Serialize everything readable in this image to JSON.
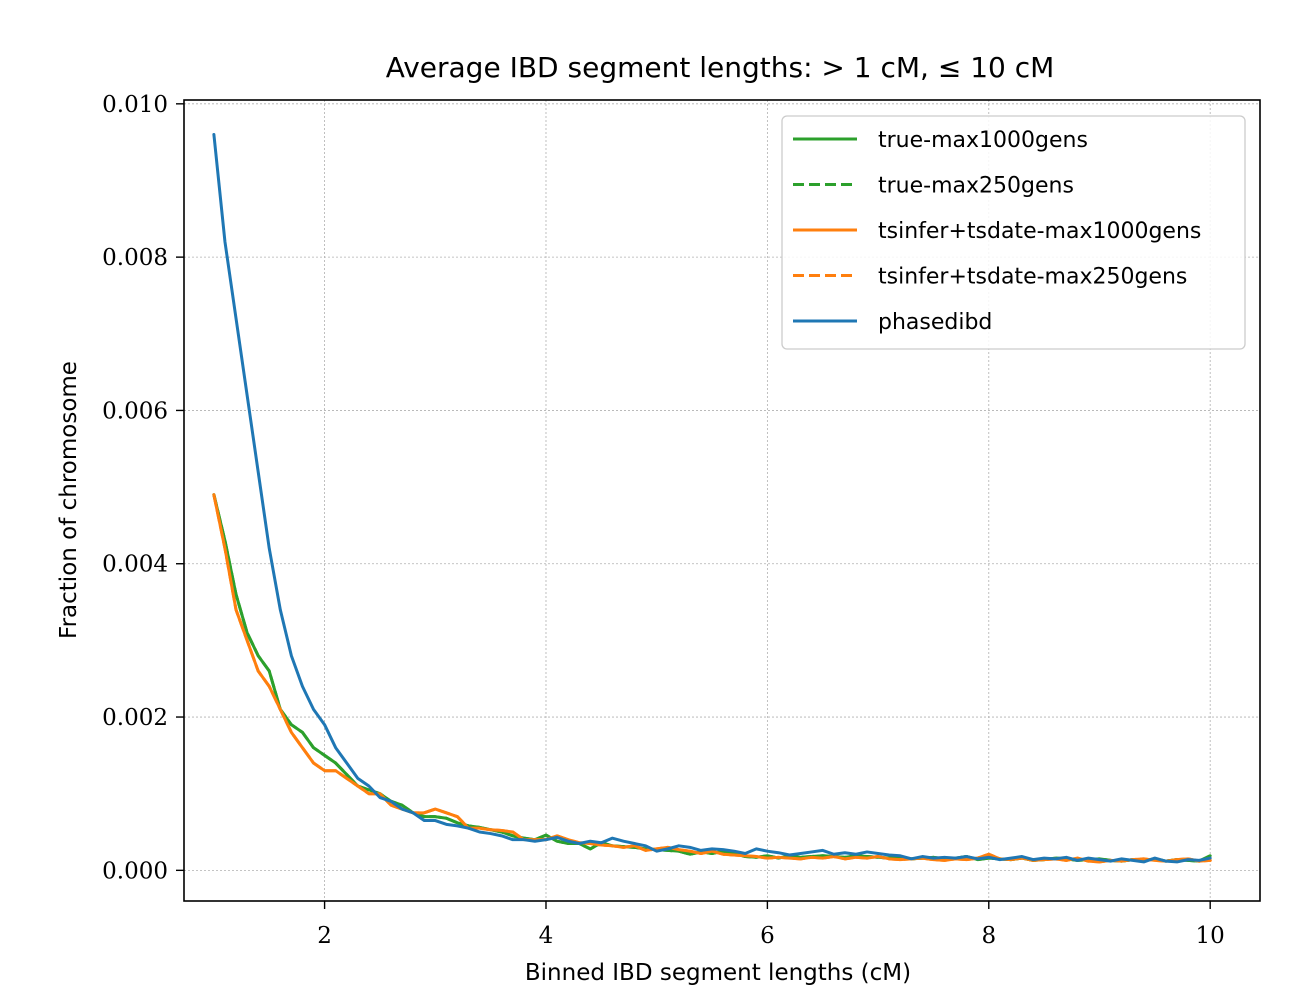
{
  "chart_data": {
    "type": "line",
    "title": "Average IBD segment lengths: > 1 cM, ≤ 10 cM",
    "xlabel": "Binned IBD segment lengths (cM)",
    "ylabel": "Fraction of chromosome",
    "xlim": [
      0.73,
      10.45
    ],
    "ylim": [
      -0.0004,
      0.01005
    ],
    "xticks": [
      2,
      4,
      6,
      8,
      10
    ],
    "xtick_labels": [
      "2",
      "4",
      "6",
      "8",
      "10"
    ],
    "yticks": [
      0.0,
      0.002,
      0.004,
      0.006,
      0.008,
      0.01
    ],
    "ytick_labels": [
      "0.000",
      "0.002",
      "0.004",
      "0.006",
      "0.008",
      "0.010"
    ],
    "grid": true,
    "legend_position": "top-right",
    "x": [
      1.0,
      1.1,
      1.2,
      1.3,
      1.4,
      1.5,
      1.6,
      1.7,
      1.8,
      1.9,
      2.0,
      2.1,
      2.2,
      2.3,
      2.4,
      2.5,
      2.6,
      2.7,
      2.8,
      2.9,
      3.0,
      3.1,
      3.2,
      3.3,
      3.4,
      3.5,
      3.6,
      3.7,
      3.8,
      3.9,
      4.0,
      4.1,
      4.2,
      4.3,
      4.4,
      4.5,
      4.6,
      4.7,
      4.8,
      4.9,
      5.0,
      5.1,
      5.2,
      5.3,
      5.4,
      5.5,
      5.6,
      5.7,
      5.8,
      5.9,
      6.0,
      6.1,
      6.2,
      6.3,
      6.4,
      6.5,
      6.6,
      6.7,
      6.8,
      6.9,
      7.0,
      7.1,
      7.2,
      7.3,
      7.4,
      7.5,
      7.6,
      7.7,
      7.8,
      7.9,
      8.0,
      8.1,
      8.2,
      8.3,
      8.4,
      8.5,
      8.6,
      8.7,
      8.8,
      8.9,
      9.0,
      9.1,
      9.2,
      9.3,
      9.4,
      9.5,
      9.6,
      9.7,
      9.8,
      9.9,
      10.0
    ],
    "series": [
      {
        "name": "true-max1000gens",
        "color": "#2ca02c",
        "dash": "solid",
        "values": [
          0.0049,
          0.0043,
          0.0036,
          0.0031,
          0.0028,
          0.0026,
          0.0021,
          0.0019,
          0.0018,
          0.0016,
          0.0015,
          0.0014,
          0.00125,
          0.0011,
          0.00105,
          0.001,
          0.0009,
          0.00085,
          0.00075,
          0.0007,
          0.0007,
          0.00068,
          0.00062,
          0.00058,
          0.00056,
          0.00053,
          0.0005,
          0.00045,
          0.00042,
          0.0004,
          0.00046,
          0.00038,
          0.00035,
          0.00035,
          0.00028,
          0.00036,
          0.00032,
          0.00031,
          0.0003,
          0.00028,
          0.00027,
          0.00026,
          0.00025,
          0.00021,
          0.00024,
          0.00022,
          0.00025,
          0.00022,
          0.00018,
          0.00017,
          0.00019,
          0.00016,
          0.00019,
          0.00017,
          0.00018,
          0.00019,
          0.00018,
          0.00017,
          0.00019,
          0.00018,
          0.00017,
          0.00016,
          0.00018,
          0.00015,
          0.00016,
          0.00017,
          0.00015,
          0.00016,
          0.00018,
          0.00014,
          0.00016,
          0.00015,
          0.00014,
          0.00016,
          0.00013,
          0.00014,
          0.00016,
          0.00015,
          0.00013,
          0.00014,
          0.00015,
          0.00013,
          0.00012,
          0.00014,
          0.00013,
          0.00015,
          0.00012,
          0.00014,
          0.00013,
          0.00012,
          0.00019
        ]
      },
      {
        "name": "true-max250gens",
        "color": "#2ca02c",
        "dash": "dashed",
        "values": [
          0.0049,
          0.0043,
          0.0036,
          0.0031,
          0.0028,
          0.0026,
          0.0021,
          0.0019,
          0.0018,
          0.0016,
          0.0015,
          0.0014,
          0.00125,
          0.0011,
          0.00105,
          0.001,
          0.0009,
          0.00085,
          0.00075,
          0.0007,
          0.0007,
          0.00068,
          0.00062,
          0.00058,
          0.00056,
          0.00053,
          0.0005,
          0.00045,
          0.00042,
          0.0004,
          0.00046,
          0.00038,
          0.00035,
          0.00035,
          0.00028,
          0.00036,
          0.00032,
          0.00031,
          0.0003,
          0.00028,
          0.00027,
          0.00026,
          0.00025,
          0.00021,
          0.00024,
          0.00022,
          0.00025,
          0.00022,
          0.00018,
          0.00017,
          0.00019,
          0.00016,
          0.00019,
          0.00017,
          0.00018,
          0.00019,
          0.00018,
          0.00017,
          0.00019,
          0.00018,
          0.00017,
          0.00016,
          0.00018,
          0.00015,
          0.00016,
          0.00017,
          0.00015,
          0.00016,
          0.00018,
          0.00014,
          0.00016,
          0.00015,
          0.00014,
          0.00016,
          0.00013,
          0.00014,
          0.00016,
          0.00015,
          0.00013,
          0.00014,
          0.00015,
          0.00013,
          0.00012,
          0.00014,
          0.00013,
          0.00015,
          0.00012,
          0.00014,
          0.00013,
          0.00012,
          0.00019
        ]
      },
      {
        "name": "tsinfer+tsdate-max1000gens",
        "color": "#ff7f0e",
        "dash": "solid",
        "values": [
          0.0049,
          0.0042,
          0.0034,
          0.003,
          0.0026,
          0.0024,
          0.0021,
          0.0018,
          0.0016,
          0.0014,
          0.0013,
          0.0013,
          0.0012,
          0.0011,
          0.001,
          0.001,
          0.00085,
          0.0008,
          0.00075,
          0.00075,
          0.0008,
          0.00075,
          0.0007,
          0.00055,
          0.00055,
          0.00053,
          0.00052,
          0.0005,
          0.0004,
          0.0004,
          0.0004,
          0.00045,
          0.0004,
          0.00036,
          0.00035,
          0.00033,
          0.00032,
          0.0003,
          0.00032,
          0.00026,
          0.00028,
          0.0003,
          0.00027,
          0.00025,
          0.00022,
          0.00025,
          0.00021,
          0.0002,
          0.00019,
          0.00018,
          0.00016,
          0.00017,
          0.00016,
          0.00015,
          0.00017,
          0.00016,
          0.00018,
          0.00015,
          0.00017,
          0.00016,
          0.00018,
          0.00015,
          0.00014,
          0.00015,
          0.00016,
          0.00014,
          0.00013,
          0.00015,
          0.00014,
          0.00016,
          0.00021,
          0.00015,
          0.00014,
          0.00016,
          0.00013,
          0.00014,
          0.00015,
          0.00013,
          0.00016,
          0.00012,
          0.00011,
          0.00013,
          0.00012,
          0.00014,
          0.00015,
          0.00013,
          0.00012,
          0.00014,
          0.00015,
          0.00012,
          0.00013
        ]
      },
      {
        "name": "tsinfer+tsdate-max250gens",
        "color": "#ff7f0e",
        "dash": "dashed",
        "values": [
          0.0049,
          0.0042,
          0.0034,
          0.003,
          0.0026,
          0.0024,
          0.0021,
          0.0018,
          0.0016,
          0.0014,
          0.0013,
          0.0013,
          0.0012,
          0.0011,
          0.001,
          0.001,
          0.00085,
          0.0008,
          0.00075,
          0.00075,
          0.0008,
          0.00075,
          0.0007,
          0.00055,
          0.00055,
          0.00053,
          0.00052,
          0.0005,
          0.0004,
          0.0004,
          0.0004,
          0.00045,
          0.0004,
          0.00036,
          0.00035,
          0.00033,
          0.00032,
          0.0003,
          0.00032,
          0.00026,
          0.00028,
          0.0003,
          0.00027,
          0.00025,
          0.00022,
          0.00025,
          0.00021,
          0.0002,
          0.00019,
          0.00018,
          0.00016,
          0.00017,
          0.00016,
          0.00015,
          0.00017,
          0.00016,
          0.00018,
          0.00015,
          0.00017,
          0.00016,
          0.00018,
          0.00015,
          0.00014,
          0.00015,
          0.00016,
          0.00014,
          0.00013,
          0.00015,
          0.00014,
          0.00016,
          0.00021,
          0.00015,
          0.00014,
          0.00016,
          0.00013,
          0.00014,
          0.00015,
          0.00013,
          0.00016,
          0.00012,
          0.00011,
          0.00013,
          0.00012,
          0.00014,
          0.00015,
          0.00013,
          0.00012,
          0.00014,
          0.00015,
          0.00012,
          0.00013
        ]
      },
      {
        "name": "phasedibd",
        "color": "#1f77b4",
        "dash": "solid",
        "values": [
          0.0096,
          0.0082,
          0.0072,
          0.0062,
          0.0052,
          0.0042,
          0.0034,
          0.0028,
          0.0024,
          0.0021,
          0.0019,
          0.0016,
          0.0014,
          0.0012,
          0.0011,
          0.00095,
          0.0009,
          0.0008,
          0.00075,
          0.00065,
          0.00065,
          0.0006,
          0.00058,
          0.00055,
          0.0005,
          0.00048,
          0.00045,
          0.0004,
          0.0004,
          0.00038,
          0.0004,
          0.00043,
          0.00038,
          0.00035,
          0.00038,
          0.00036,
          0.00042,
          0.00038,
          0.00035,
          0.00032,
          0.00025,
          0.00028,
          0.00032,
          0.0003,
          0.00026,
          0.00028,
          0.00027,
          0.00025,
          0.00022,
          0.00028,
          0.00025,
          0.00023,
          0.0002,
          0.00022,
          0.00024,
          0.00026,
          0.00021,
          0.00023,
          0.00021,
          0.00024,
          0.00022,
          0.0002,
          0.00019,
          0.00015,
          0.00018,
          0.00016,
          0.00017,
          0.00016,
          0.00018,
          0.00015,
          0.00017,
          0.00014,
          0.00016,
          0.00018,
          0.00014,
          0.00016,
          0.00015,
          0.00017,
          0.00013,
          0.00016,
          0.00014,
          0.00012,
          0.00015,
          0.00013,
          0.00011,
          0.00016,
          0.00012,
          0.00011,
          0.00014,
          0.00013,
          0.00016
        ]
      }
    ]
  }
}
